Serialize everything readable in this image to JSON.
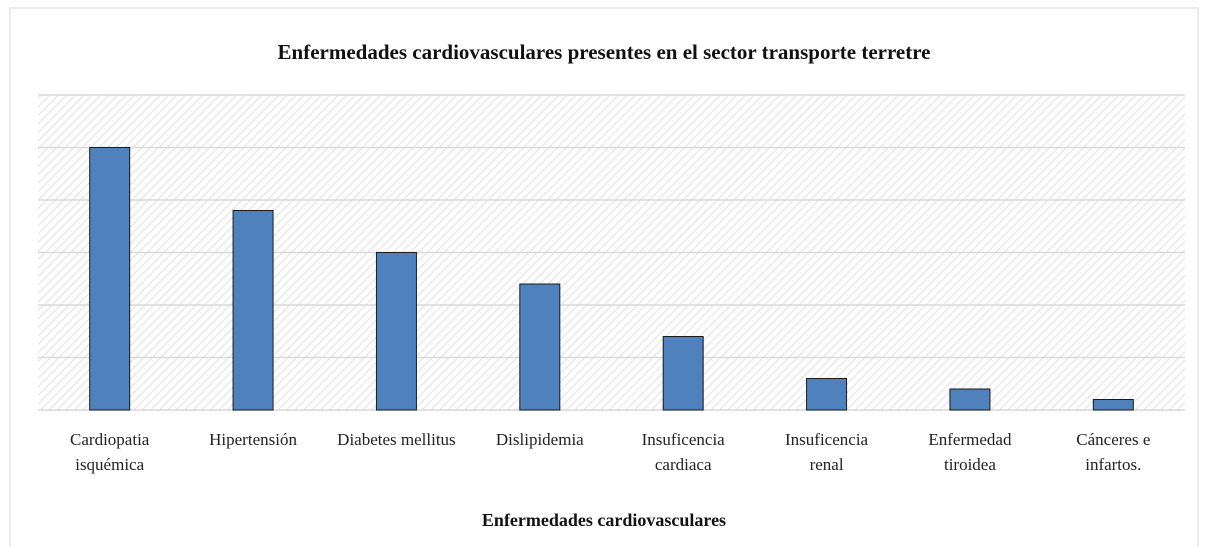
{
  "chart_data": {
    "type": "bar",
    "title": "Enfermedades cardiovasculares presentes en el sector transporte terretre",
    "x_label": "Enfermedades cardiovasculares",
    "categories": [
      "Cardiopatia isquémica",
      "Hipertensión",
      "Diabetes mellitus",
      "Dislipidemia",
      "Insuficencia cardiaca",
      "Insuficencia renal",
      "Enfermedad tiroidea",
      "Cánceres e infartos."
    ],
    "values": [
      5.0,
      3.8,
      3.0,
      2.4,
      1.4,
      0.6,
      0.4,
      0.2
    ],
    "color": "#4f81bd",
    "ylim": [
      0,
      6
    ],
    "yticks": [
      0,
      1,
      2,
      3,
      4,
      5,
      6
    ],
    "grid": true
  }
}
